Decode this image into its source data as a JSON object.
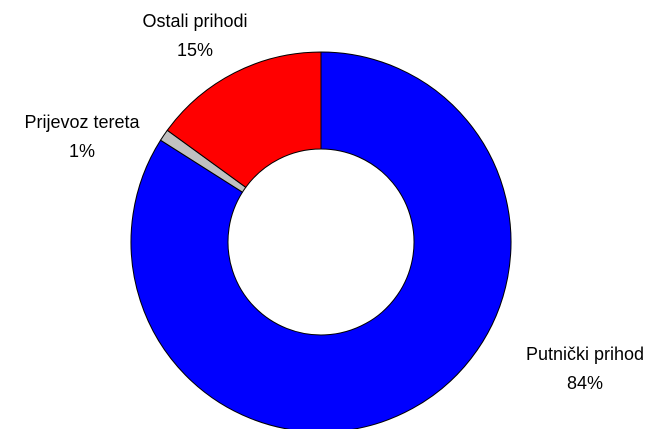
{
  "chart_data": {
    "type": "donut",
    "categories": [
      "Putnički prihod",
      "Prijevoz tereta",
      "Ostali prihodi"
    ],
    "values": [
      84,
      1,
      15
    ],
    "value_labels": [
      "84%",
      "1%",
      "15%"
    ],
    "colors": [
      "#0000ff",
      "#c0c0c0",
      "#ff0000"
    ]
  }
}
